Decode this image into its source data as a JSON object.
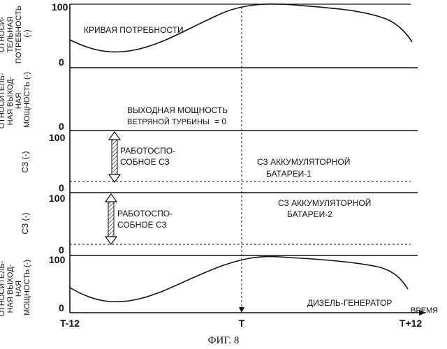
{
  "figure_caption": "ФИГ. 8",
  "x_axis": {
    "label": "ВРЕМЯ",
    "ticks": [
      "T-12",
      "T",
      "T+12"
    ]
  },
  "panels": {
    "demand": {
      "ylabel_lines": [
        "ОТНОСИ-",
        "ТЕЛЬНАЯ",
        "ПОТРЕБНОСТЬ",
        "(-)"
      ],
      "y_top": "100",
      "y_bottom": "0",
      "curve_label": "КРИВАЯ ПОТРЕБНОСТИ"
    },
    "wind": {
      "ylabel_lines": [
        "ОТНОСИТЕЛЬ-",
        "НАЯ ВЫХОД-",
        "НАЯ",
        "МОЩНОСТЬ (-)"
      ],
      "y_bottom": "0",
      "note_line1": "ВЫХОДНАЯ МОЩНОСТЬ",
      "note_line2": "ВЕТРЯНОЙ ТУРБИНЫ",
      "note_value": "= 0"
    },
    "battery1": {
      "ylabel": "СЗ (-)",
      "y_top": "100",
      "y_bottom": "0",
      "arrow_label_line1": "РАБОТОСПО-",
      "arrow_label_line2": "СОБНОЕ СЗ",
      "name_line1": "СЗ АККУМУЛЯТОРНОЙ",
      "name_line2": "БАТАРЕИ-1"
    },
    "battery2": {
      "ylabel": "СЗ (-)",
      "y_top": "100",
      "y_bottom": "0",
      "arrow_label_line1": "РАБОТОСПО-",
      "arrow_label_line2": "СОБНОЕ СЗ",
      "name_line1": "СЗ АККУМУЛЯТОРНОЙ",
      "name_line2": "БАТАРЕИ-2"
    },
    "diesel": {
      "ylabel_lines": [
        "ОТНОСИТЕЛЬ-",
        "НАЯ ВЫХОД-",
        "НАЯ",
        "МОЩНОСТЬ (-)"
      ],
      "y_top": "100",
      "y_bottom": "0",
      "curve_label": "ДИЗЕЛЬ-ГЕНЕРАТОР"
    }
  }
}
